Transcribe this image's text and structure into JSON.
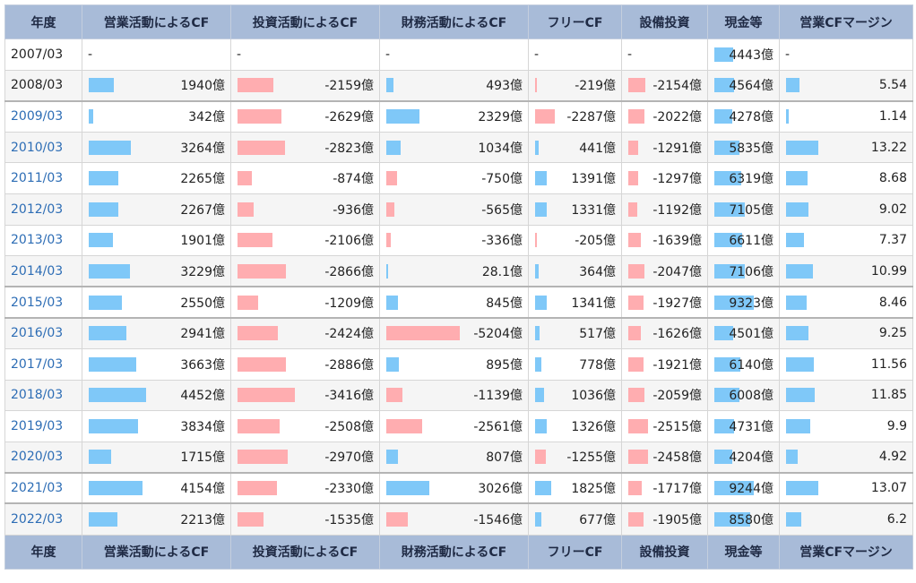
{
  "columns": [
    "年度",
    "営業活動によるCF",
    "投資活動によるCF",
    "財務活動によるCF",
    "フリーCF",
    "設備投資",
    "現金等",
    "営業CFマージン"
  ],
  "bar_colors": {
    "positive": "#7fc8f8",
    "negative": "#ffadb0"
  },
  "rows": [
    {
      "year": "2007/03",
      "link": false,
      "cells": [
        "-",
        "-",
        "-",
        "-",
        "-",
        "4443億",
        "-"
      ],
      "nums": [
        null,
        null,
        null,
        null,
        null,
        4443,
        null
      ]
    },
    {
      "year": "2008/03",
      "link": false,
      "cells": [
        "1940億",
        "-2159億",
        "493億",
        "-219億",
        "-2154億",
        "4564億",
        "5.54"
      ],
      "nums": [
        1940,
        -2159,
        493,
        -219,
        -2154,
        4564,
        5.54
      ]
    },
    {
      "year": "2009/03",
      "link": true,
      "cells": [
        "342億",
        "-2629億",
        "2329億",
        "-2287億",
        "-2022億",
        "4278億",
        "1.14"
      ],
      "nums": [
        342,
        -2629,
        2329,
        -2287,
        -2022,
        4278,
        1.14
      ]
    },
    {
      "year": "2010/03",
      "link": true,
      "cells": [
        "3264億",
        "-2823億",
        "1034億",
        "441億",
        "-1291億",
        "5835億",
        "13.22"
      ],
      "nums": [
        3264,
        -2823,
        1034,
        441,
        -1291,
        5835,
        13.22
      ]
    },
    {
      "year": "2011/03",
      "link": true,
      "cells": [
        "2265億",
        "-874億",
        "-750億",
        "1391億",
        "-1297億",
        "6319億",
        "8.68"
      ],
      "nums": [
        2265,
        -874,
        -750,
        1391,
        -1297,
        6319,
        8.68
      ]
    },
    {
      "year": "2012/03",
      "link": true,
      "cells": [
        "2267億",
        "-936億",
        "-565億",
        "1331億",
        "-1192億",
        "7105億",
        "9.02"
      ],
      "nums": [
        2267,
        -936,
        -565,
        1331,
        -1192,
        7105,
        9.02
      ]
    },
    {
      "year": "2013/03",
      "link": true,
      "cells": [
        "1901億",
        "-2106億",
        "-336億",
        "-205億",
        "-1639億",
        "6611億",
        "7.37"
      ],
      "nums": [
        1901,
        -2106,
        -336,
        -205,
        -1639,
        6611,
        7.37
      ]
    },
    {
      "year": "2014/03",
      "link": true,
      "cells": [
        "3229億",
        "-2866億",
        "28.1億",
        "364億",
        "-2047億",
        "7106億",
        "10.99"
      ],
      "nums": [
        3229,
        -2866,
        28.1,
        364,
        -2047,
        7106,
        10.99
      ]
    },
    {
      "year": "2015/03",
      "link": true,
      "cells": [
        "2550億",
        "-1209億",
        "845億",
        "1341億",
        "-1927億",
        "9323億",
        "8.46"
      ],
      "nums": [
        2550,
        -1209,
        845,
        1341,
        -1927,
        9323,
        8.46
      ]
    },
    {
      "year": "2016/03",
      "link": true,
      "cells": [
        "2941億",
        "-2424億",
        "-5204億",
        "517億",
        "-1626億",
        "4501億",
        "9.25"
      ],
      "nums": [
        2941,
        -2424,
        -5204,
        517,
        -1626,
        4501,
        9.25
      ]
    },
    {
      "year": "2017/03",
      "link": true,
      "cells": [
        "3663億",
        "-2886億",
        "895億",
        "778億",
        "-1921億",
        "6140億",
        "11.56"
      ],
      "nums": [
        3663,
        -2886,
        895,
        778,
        -1921,
        6140,
        11.56
      ]
    },
    {
      "year": "2018/03",
      "link": true,
      "cells": [
        "4452億",
        "-3416億",
        "-1139億",
        "1036億",
        "-2059億",
        "6008億",
        "11.85"
      ],
      "nums": [
        4452,
        -3416,
        -1139,
        1036,
        -2059,
        6008,
        11.85
      ]
    },
    {
      "year": "2019/03",
      "link": true,
      "cells": [
        "3834億",
        "-2508億",
        "-2561億",
        "1326億",
        "-2515億",
        "4731億",
        "9.9"
      ],
      "nums": [
        3834,
        -2508,
        -2561,
        1326,
        -2515,
        4731,
        9.9
      ]
    },
    {
      "year": "2020/03",
      "link": true,
      "cells": [
        "1715億",
        "-2970億",
        "807億",
        "-1255億",
        "-2458億",
        "4204億",
        "4.92"
      ],
      "nums": [
        1715,
        -2970,
        807,
        -1255,
        -2458,
        4204,
        4.92
      ]
    },
    {
      "year": "2021/03",
      "link": true,
      "cells": [
        "4154億",
        "-2330億",
        "3026億",
        "1825億",
        "-1717億",
        "9244億",
        "13.07"
      ],
      "nums": [
        4154,
        -2330,
        3026,
        1825,
        -1717,
        9244,
        13.07
      ]
    },
    {
      "year": "2022/03",
      "link": true,
      "cells": [
        "2213億",
        "-1535億",
        "-1546億",
        "677億",
        "-1905億",
        "8580億",
        "6.2"
      ],
      "nums": [
        2213,
        -1535,
        -1546,
        677,
        -1905,
        8580,
        6.2
      ]
    }
  ]
}
